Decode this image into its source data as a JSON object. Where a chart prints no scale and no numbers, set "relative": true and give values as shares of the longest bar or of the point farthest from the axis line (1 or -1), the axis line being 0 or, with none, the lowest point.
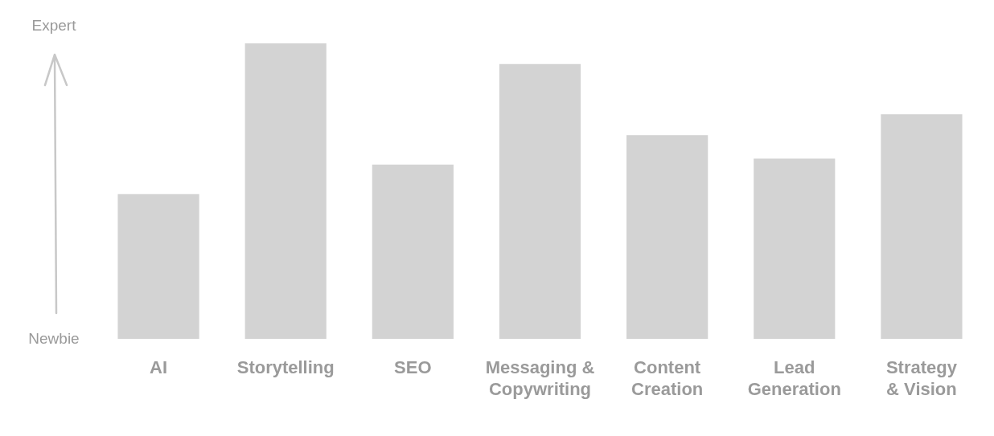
{
  "chart_data": {
    "type": "bar",
    "relative": true,
    "categories": [
      "AI",
      "Storytelling",
      "SEO",
      "Messaging & Copywriting",
      "Content Creation",
      "Lead Generation",
      "Strategy & Vision"
    ],
    "values": [
      0.49,
      1,
      0.59,
      0.93,
      0.69,
      0.61,
      0.76
    ],
    "color": "#d3d3d3",
    "annotations": [
      "Expert",
      "Newbie"
    ]
  }
}
